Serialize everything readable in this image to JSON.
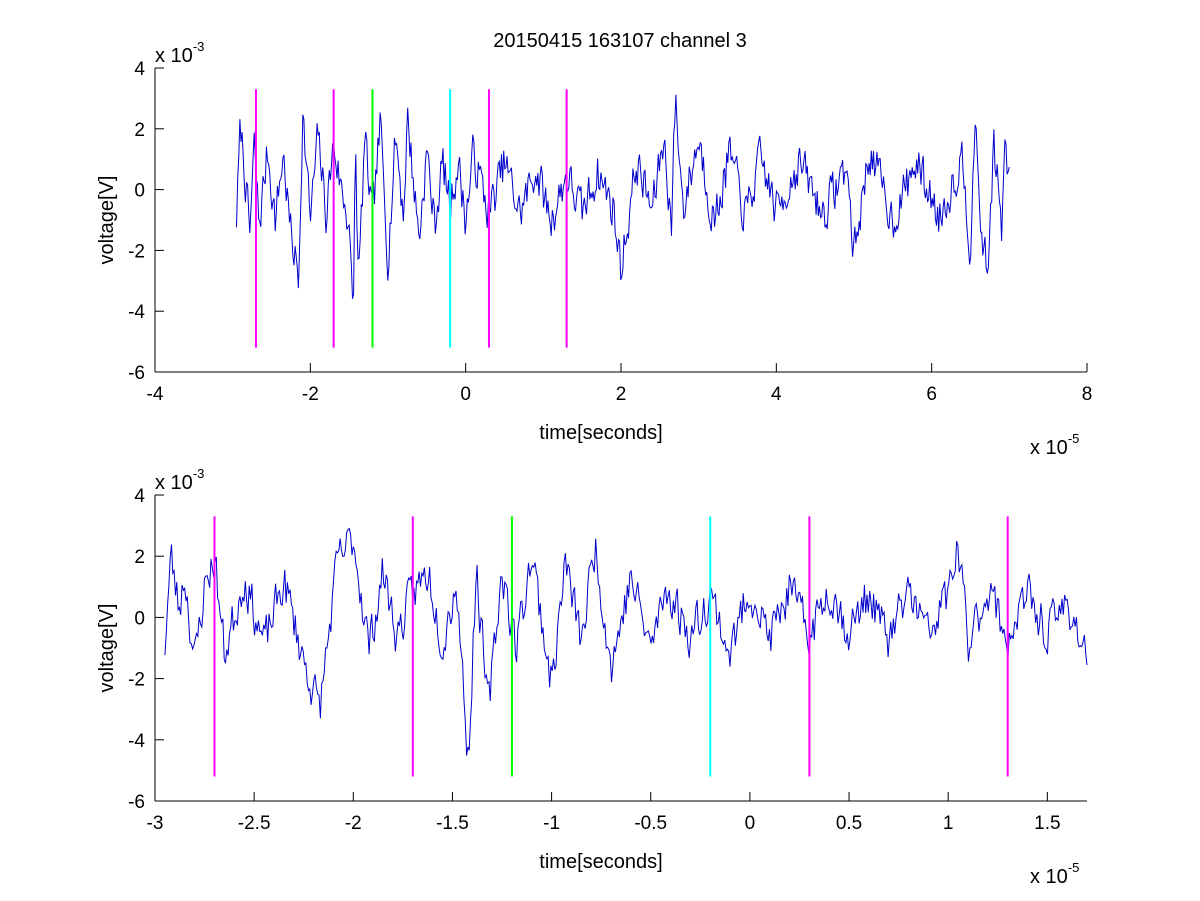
{
  "title": "20150415 163107 channel 3",
  "chart_data": [
    {
      "type": "line",
      "xlabel": "time[seconds]",
      "ylabel": "voltage[V]",
      "x_exponent_label": {
        "base": "x 10",
        "power": "-5"
      },
      "y_exponent_label": {
        "base": "x 10",
        "power": "-3"
      },
      "xlim": [
        -4,
        8
      ],
      "ylim": [
        -6,
        4
      ],
      "xticks": [
        -4,
        -2,
        0,
        2,
        4,
        6,
        8
      ],
      "xtick_labels": [
        "-4",
        "-2",
        "0",
        "2",
        "4",
        "6",
        "8"
      ],
      "yticks": [
        -6,
        -4,
        -2,
        0,
        2,
        4
      ],
      "ytick_labels": [
        "-6",
        "-4",
        "-2",
        "0",
        "2",
        "4"
      ],
      "grid": false,
      "signal": {
        "color": "#0000cc",
        "x_range": [
          -2.95,
          7.0
        ],
        "keypoints": [
          [
            -2.95,
            -0.9
          ],
          [
            -2.9,
            2.1
          ],
          [
            -2.85,
            0.8
          ],
          [
            -2.78,
            -1.5
          ],
          [
            -2.72,
            1.5
          ],
          [
            -2.66,
            -1.2
          ],
          [
            -2.55,
            1.3
          ],
          [
            -2.45,
            -1.0
          ],
          [
            -2.35,
            1.2
          ],
          [
            -2.25,
            -1.5
          ],
          [
            -2.15,
            -2.9
          ],
          [
            -2.1,
            2.6
          ],
          [
            -2.0,
            -1.0
          ],
          [
            -1.9,
            1.8
          ],
          [
            -1.8,
            -0.8
          ],
          [
            -1.7,
            1.5
          ],
          [
            -1.6,
            0.0
          ],
          [
            -1.5,
            -1.0
          ],
          [
            -1.45,
            -4.7
          ],
          [
            -1.42,
            1.6
          ],
          [
            -1.38,
            -3.2
          ],
          [
            -1.3,
            1.6
          ],
          [
            -1.2,
            -1.0
          ],
          [
            -1.1,
            2.1
          ],
          [
            -1.0,
            -2.2
          ],
          [
            -0.9,
            1.8
          ],
          [
            -0.8,
            -0.8
          ],
          [
            -0.75,
            2.4
          ],
          [
            -0.6,
            -1.6
          ],
          [
            -0.5,
            1.3
          ],
          [
            -0.4,
            -1.2
          ],
          [
            -0.3,
            0.9
          ],
          [
            -0.2,
            -0.5
          ],
          [
            -0.1,
            0.9
          ],
          [
            0.0,
            -1.0
          ],
          [
            0.1,
            1.2
          ],
          [
            0.3,
            -0.8
          ],
          [
            0.5,
            0.9
          ],
          [
            0.7,
            -0.8
          ],
          [
            0.9,
            0.7
          ],
          [
            1.1,
            -1.0
          ],
          [
            1.3,
            0.5
          ],
          [
            1.5,
            -0.8
          ],
          [
            1.7,
            0.6
          ],
          [
            1.9,
            -0.6
          ],
          [
            2.0,
            -2.6
          ],
          [
            2.2,
            0.9
          ],
          [
            2.4,
            -0.7
          ],
          [
            2.55,
            1.7
          ],
          [
            2.65,
            -1.1
          ],
          [
            2.7,
            3.0
          ],
          [
            2.8,
            -0.6
          ],
          [
            3.0,
            1.7
          ],
          [
            3.2,
            -1.1
          ],
          [
            3.4,
            1.2
          ],
          [
            3.6,
            -0.9
          ],
          [
            3.8,
            1.0
          ],
          [
            4.0,
            -0.7
          ],
          [
            4.3,
            0.9
          ],
          [
            4.6,
            -0.8
          ],
          [
            4.9,
            0.8
          ],
          [
            5.0,
            -2.1
          ],
          [
            5.2,
            1.3
          ],
          [
            5.5,
            -1.0
          ],
          [
            5.8,
            0.9
          ],
          [
            6.1,
            -0.9
          ],
          [
            6.4,
            1.1
          ],
          [
            6.5,
            -2.0
          ],
          [
            6.55,
            2.1
          ],
          [
            6.65,
            -1.6
          ],
          [
            6.72,
            -2.8
          ],
          [
            6.8,
            1.6
          ],
          [
            6.9,
            -1.3
          ],
          [
            6.95,
            1.4
          ],
          [
            7.0,
            0.1
          ]
        ]
      },
      "markers": [
        {
          "x": -2.7,
          "color": "#ff00ff",
          "ymin": -5.2,
          "ymax": 3.3
        },
        {
          "x": -1.7,
          "color": "#ff00ff",
          "ymin": -5.2,
          "ymax": 3.3
        },
        {
          "x": -1.2,
          "color": "#00ff00",
          "ymin": -5.2,
          "ymax": 3.3
        },
        {
          "x": -0.2,
          "color": "#00ffff",
          "ymin": -5.2,
          "ymax": 3.3
        },
        {
          "x": 0.3,
          "color": "#ff00ff",
          "ymin": -5.2,
          "ymax": 3.3
        },
        {
          "x": 1.3,
          "color": "#ff00ff",
          "ymin": -5.2,
          "ymax": 3.3
        }
      ]
    },
    {
      "type": "line",
      "xlabel": "time[seconds]",
      "ylabel": "voltage[V]",
      "x_exponent_label": {
        "base": "x 10",
        "power": "-5"
      },
      "y_exponent_label": {
        "base": "x 10",
        "power": "-3"
      },
      "xlim": [
        -3.0,
        1.7
      ],
      "ylim": [
        -6,
        4
      ],
      "xticks": [
        -3,
        -2.5,
        -2,
        -1.5,
        -1,
        -0.5,
        0,
        0.5,
        1,
        1.5
      ],
      "xtick_labels": [
        "-3",
        "-2.5",
        "-2",
        "-1.5",
        "-1",
        "-0.5",
        "0",
        "0.5",
        "1",
        "1.5"
      ],
      "yticks": [
        -6,
        -4,
        -2,
        0,
        2,
        4
      ],
      "ytick_labels": [
        "-6",
        "-4",
        "-2",
        "0",
        "2",
        "4"
      ],
      "grid": false,
      "signal": {
        "color": "#0000cc",
        "x_range": [
          -2.95,
          1.7
        ],
        "keypoints": [
          [
            -2.95,
            -0.9
          ],
          [
            -2.92,
            2.0
          ],
          [
            -2.88,
            0.3
          ],
          [
            -2.85,
            1.4
          ],
          [
            -2.8,
            -1.5
          ],
          [
            -2.75,
            1.0
          ],
          [
            -2.7,
            2.0
          ],
          [
            -2.65,
            -1.2
          ],
          [
            -2.55,
            1.3
          ],
          [
            -2.45,
            -0.9
          ],
          [
            -2.35,
            1.2
          ],
          [
            -2.25,
            -1.4
          ],
          [
            -2.17,
            -3.0
          ],
          [
            -2.08,
            1.8
          ],
          [
            -2.0,
            2.6
          ],
          [
            -1.92,
            -1.0
          ],
          [
            -1.85,
            1.5
          ],
          [
            -1.78,
            -0.6
          ],
          [
            -1.7,
            0.8
          ],
          [
            -1.62,
            1.5
          ],
          [
            -1.55,
            -0.8
          ],
          [
            -1.48,
            1.2
          ],
          [
            -1.42,
            -4.7
          ],
          [
            -1.38,
            1.6
          ],
          [
            -1.32,
            -3.1
          ],
          [
            -1.25,
            1.6
          ],
          [
            -1.18,
            -1.0
          ],
          [
            -1.1,
            2.1
          ],
          [
            -1.0,
            -2.2
          ],
          [
            -0.93,
            1.8
          ],
          [
            -0.85,
            -0.8
          ],
          [
            -0.78,
            2.4
          ],
          [
            -0.7,
            -1.6
          ],
          [
            -0.6,
            1.3
          ],
          [
            -0.5,
            -1.0
          ],
          [
            -0.42,
            1.0
          ],
          [
            -0.3,
            -0.6
          ],
          [
            -0.2,
            0.8
          ],
          [
            -0.1,
            -1.2
          ],
          [
            0.0,
            1.0
          ],
          [
            0.1,
            -0.7
          ],
          [
            0.2,
            0.9
          ],
          [
            0.3,
            -0.6
          ],
          [
            0.4,
            1.0
          ],
          [
            0.5,
            -0.5
          ],
          [
            0.6,
            0.8
          ],
          [
            0.7,
            -0.8
          ],
          [
            0.8,
            0.9
          ],
          [
            0.9,
            -0.6
          ],
          [
            1.0,
            0.8
          ],
          [
            1.05,
            2.3
          ],
          [
            1.1,
            -0.9
          ],
          [
            1.2,
            1.0
          ],
          [
            1.3,
            -0.7
          ],
          [
            1.4,
            0.7
          ],
          [
            1.5,
            -0.5
          ],
          [
            1.6,
            0.5
          ],
          [
            1.7,
            -1.2
          ]
        ]
      },
      "markers": [
        {
          "x": -2.7,
          "color": "#ff00ff",
          "ymin": -5.2,
          "ymax": 3.3
        },
        {
          "x": -1.7,
          "color": "#ff00ff",
          "ymin": -5.2,
          "ymax": 3.3
        },
        {
          "x": -1.2,
          "color": "#00ff00",
          "ymin": -5.2,
          "ymax": 3.3
        },
        {
          "x": -0.2,
          "color": "#00ffff",
          "ymin": -5.2,
          "ymax": 3.3
        },
        {
          "x": 0.3,
          "color": "#ff00ff",
          "ymin": -5.2,
          "ymax": 3.3
        },
        {
          "x": 1.3,
          "color": "#ff00ff",
          "ymin": -5.2,
          "ymax": 3.3
        }
      ]
    }
  ]
}
